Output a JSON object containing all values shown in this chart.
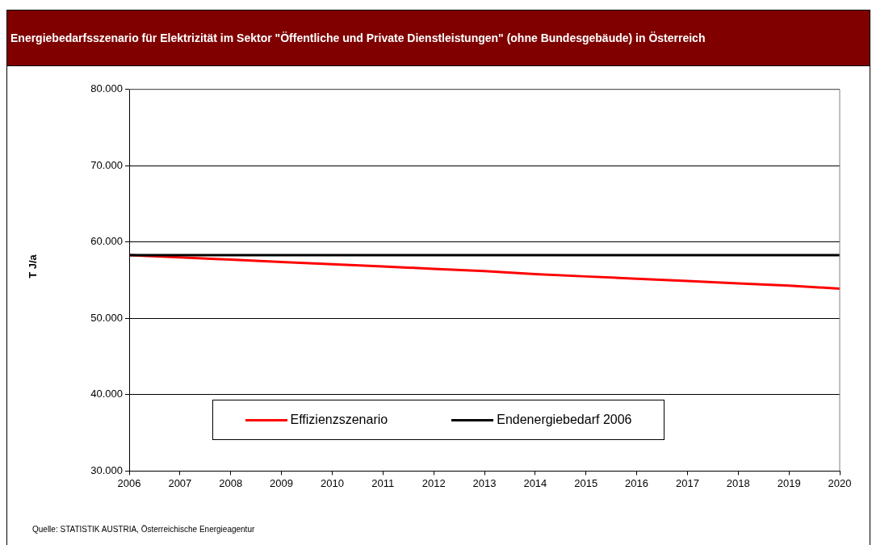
{
  "chart_data": {
    "type": "line",
    "title": "Energiebedarfsszenario für Elektrizität im Sektor \"Öffentliche und Private Dienstleistungen\" (ohne Bundesgebäude) in Österreich",
    "ylabel": "T J/a",
    "x": [
      2006,
      2007,
      2008,
      2009,
      2010,
      2011,
      2012,
      2013,
      2014,
      2015,
      2016,
      2017,
      2018,
      2019,
      2020
    ],
    "series": [
      {
        "name": "Effizienzszenario",
        "color": "#ff0000",
        "values": [
          58300,
          58000,
          57700,
          57400,
          57100,
          56800,
          56500,
          56200,
          55800,
          55500,
          55200,
          54900,
          54600,
          54300,
          53900
        ]
      },
      {
        "name": "Endenergiebedarf 2006",
        "color": "#000000",
        "values": [
          58300,
          58300,
          58300,
          58300,
          58300,
          58300,
          58300,
          58300,
          58300,
          58300,
          58300,
          58300,
          58300,
          58300,
          58300
        ]
      }
    ],
    "xlim": [
      2006,
      2020
    ],
    "xticks": [
      2006,
      2007,
      2008,
      2009,
      2010,
      2011,
      2012,
      2013,
      2014,
      2015,
      2016,
      2017,
      2018,
      2019,
      2020
    ],
    "ylim": [
      30000,
      80000
    ],
    "yticks": [
      {
        "value": 30000,
        "label": "30.000"
      },
      {
        "value": 40000,
        "label": "40.000"
      },
      {
        "value": 50000,
        "label": "50.000"
      },
      {
        "value": 60000,
        "label": "60.000"
      },
      {
        "value": 70000,
        "label": "70.000"
      },
      {
        "value": 80000,
        "label": "80.000"
      }
    ],
    "grid": "y",
    "legend": "bottom",
    "marker": "none",
    "line_style": "solid",
    "annotations": [
      "Quelle: STATISTIK AUSTRIA, Österreichische Energieagentur"
    ]
  }
}
